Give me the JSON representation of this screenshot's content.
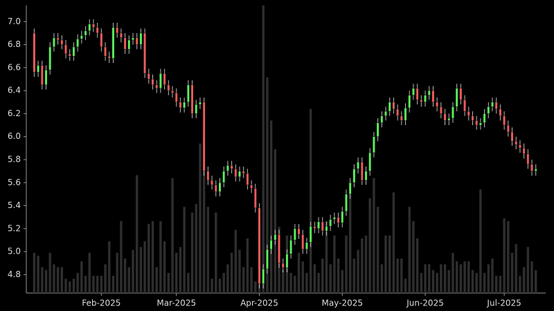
{
  "chart_data": {
    "type": "candlestick",
    "categories": [
      null,
      null,
      null,
      null,
      null,
      null,
      null,
      null,
      null,
      null,
      null,
      null,
      null,
      null,
      null,
      null,
      null,
      null,
      null,
      null,
      null,
      null,
      null,
      null,
      null,
      null,
      null,
      null,
      null,
      null,
      null,
      null,
      null,
      null,
      null,
      null,
      null,
      null,
      null,
      null,
      null,
      null,
      null,
      null,
      null,
      null,
      null,
      null,
      null,
      null,
      null,
      null,
      null,
      null,
      null,
      null,
      null,
      null,
      null,
      null,
      null,
      null,
      null,
      null,
      null,
      null,
      null,
      null,
      null,
      null,
      null,
      null,
      null,
      null,
      null,
      null,
      null,
      null,
      null,
      null,
      null,
      null,
      null,
      null,
      null,
      null,
      null,
      null,
      null,
      null,
      null,
      null,
      null,
      null,
      null,
      null,
      null,
      null,
      null,
      null,
      null,
      null,
      null,
      null,
      null,
      null,
      null,
      null,
      null,
      null,
      null,
      null,
      null,
      null,
      null,
      null,
      null,
      null,
      null,
      null,
      null,
      null,
      null,
      null,
      null,
      null,
      null,
      null
    ],
    "open": [
      6.9,
      6.56,
      6.62,
      6.45,
      6.58,
      6.78,
      6.86,
      6.84,
      6.8,
      6.72,
      6.7,
      6.78,
      6.85,
      6.88,
      6.92,
      6.98,
      6.95,
      6.9,
      6.78,
      6.7,
      6.68,
      6.95,
      6.9,
      6.86,
      6.76,
      6.84,
      6.86,
      6.8,
      6.9,
      6.55,
      6.5,
      6.45,
      6.42,
      6.55,
      6.45,
      6.4,
      6.38,
      6.3,
      6.25,
      6.3,
      6.45,
      6.2,
      6.28,
      6.3,
      5.7,
      5.62,
      5.58,
      5.52,
      5.6,
      5.7,
      5.75,
      5.72,
      5.65,
      5.7,
      5.68,
      5.58,
      5.55,
      5.38,
      4.72,
      4.85,
      5.02,
      5.1,
      5.15,
      4.9,
      4.86,
      4.98,
      5.1,
      5.2,
      5.15,
      5.02,
      5.08,
      5.22,
      5.2,
      5.26,
      5.18,
      5.22,
      5.28,
      5.3,
      5.25,
      5.35,
      5.5,
      5.6,
      5.72,
      5.78,
      5.62,
      5.7,
      5.86,
      6.0,
      6.12,
      6.18,
      6.22,
      6.3,
      6.24,
      6.18,
      6.14,
      6.25,
      6.36,
      6.42,
      6.32,
      6.3,
      6.36,
      6.4,
      6.3,
      6.26,
      6.2,
      6.14,
      6.16,
      6.26,
      6.42,
      6.32,
      6.22,
      6.18,
      6.14,
      6.1,
      6.12,
      6.2,
      6.26,
      6.3,
      6.24,
      6.18,
      6.1,
      6.04,
      5.96,
      5.93,
      5.9,
      5.85,
      5.76,
      5.7
    ],
    "high": [
      6.94,
      6.66,
      6.66,
      6.62,
      6.82,
      6.9,
      6.9,
      6.88,
      6.84,
      6.76,
      6.82,
      6.89,
      6.92,
      6.96,
      7.02,
      7.02,
      6.99,
      6.94,
      6.82,
      6.74,
      6.99,
      6.99,
      6.94,
      6.9,
      6.88,
      6.9,
      6.9,
      6.94,
      6.94,
      6.59,
      6.54,
      6.49,
      6.59,
      6.59,
      6.49,
      6.44,
      6.42,
      6.34,
      6.34,
      6.49,
      6.49,
      6.32,
      6.34,
      6.34,
      5.74,
      5.66,
      5.62,
      5.64,
      5.74,
      5.79,
      5.79,
      5.76,
      5.74,
      5.74,
      5.72,
      5.62,
      5.59,
      5.42,
      4.89,
      5.06,
      5.14,
      5.19,
      5.19,
      4.94,
      5.02,
      5.14,
      5.24,
      5.24,
      5.19,
      5.12,
      5.26,
      5.26,
      5.3,
      5.3,
      5.26,
      5.32,
      5.34,
      5.34,
      5.39,
      5.54,
      5.64,
      5.76,
      5.82,
      5.82,
      5.74,
      5.9,
      6.04,
      6.16,
      6.22,
      6.26,
      6.34,
      6.34,
      6.28,
      6.22,
      6.29,
      6.4,
      6.46,
      6.46,
      6.36,
      6.4,
      6.44,
      6.44,
      6.34,
      6.3,
      6.24,
      6.2,
      6.3,
      6.46,
      6.46,
      6.36,
      6.26,
      6.22,
      6.18,
      6.16,
      6.24,
      6.3,
      6.34,
      6.34,
      6.28,
      6.22,
      6.14,
      6.08,
      6.0,
      5.97,
      5.94,
      5.89,
      5.8,
      5.76
    ],
    "low": [
      6.52,
      6.52,
      6.41,
      6.41,
      6.54,
      6.74,
      6.8,
      6.76,
      6.68,
      6.66,
      6.66,
      6.74,
      6.81,
      6.84,
      6.88,
      6.91,
      6.86,
      6.74,
      6.66,
      6.64,
      6.64,
      6.86,
      6.82,
      6.72,
      6.72,
      6.8,
      6.76,
      6.76,
      6.51,
      6.46,
      6.41,
      6.38,
      6.38,
      6.41,
      6.36,
      6.34,
      6.26,
      6.21,
      6.21,
      6.26,
      6.16,
      6.16,
      6.24,
      5.66,
      5.58,
      5.54,
      5.48,
      5.48,
      5.56,
      5.66,
      5.68,
      5.61,
      5.61,
      5.64,
      5.54,
      5.51,
      5.34,
      4.68,
      4.68,
      4.81,
      4.98,
      5.06,
      4.86,
      4.82,
      4.82,
      4.94,
      5.06,
      5.11,
      4.98,
      4.98,
      5.04,
      5.16,
      5.16,
      5.14,
      5.14,
      5.18,
      5.24,
      5.21,
      5.21,
      5.31,
      5.46,
      5.56,
      5.68,
      5.58,
      5.58,
      5.66,
      5.82,
      5.96,
      6.08,
      6.14,
      6.18,
      6.2,
      6.14,
      6.1,
      6.1,
      6.21,
      6.32,
      6.28,
      6.26,
      6.26,
      6.32,
      6.26,
      6.22,
      6.16,
      6.1,
      6.1,
      6.12,
      6.22,
      6.28,
      6.18,
      6.14,
      6.1,
      6.06,
      6.06,
      6.08,
      6.16,
      6.22,
      6.2,
      6.14,
      6.06,
      6.0,
      5.92,
      5.89,
      5.86,
      5.81,
      5.72,
      5.66,
      5.66
    ],
    "close": [
      6.56,
      6.62,
      6.45,
      6.58,
      6.78,
      6.86,
      6.84,
      6.8,
      6.72,
      6.7,
      6.78,
      6.85,
      6.88,
      6.92,
      6.98,
      6.95,
      6.9,
      6.78,
      6.7,
      6.68,
      6.95,
      6.9,
      6.86,
      6.76,
      6.84,
      6.86,
      6.8,
      6.9,
      6.55,
      6.5,
      6.45,
      6.42,
      6.55,
      6.45,
      6.4,
      6.38,
      6.3,
      6.25,
      6.3,
      6.45,
      6.2,
      6.28,
      6.3,
      5.7,
      5.62,
      5.58,
      5.52,
      5.6,
      5.7,
      5.75,
      5.72,
      5.65,
      5.7,
      5.68,
      5.58,
      5.55,
      5.38,
      4.72,
      4.85,
      5.02,
      5.1,
      5.15,
      4.9,
      4.86,
      4.98,
      5.1,
      5.2,
      5.15,
      5.02,
      5.08,
      5.22,
      5.2,
      5.26,
      5.18,
      5.22,
      5.28,
      5.3,
      5.25,
      5.35,
      5.5,
      5.6,
      5.72,
      5.78,
      5.62,
      5.7,
      5.86,
      6.0,
      6.12,
      6.18,
      6.22,
      6.3,
      6.24,
      6.18,
      6.14,
      6.25,
      6.36,
      6.42,
      6.32,
      6.3,
      6.36,
      6.4,
      6.3,
      6.26,
      6.2,
      6.14,
      6.16,
      6.26,
      6.42,
      6.32,
      6.22,
      6.18,
      6.14,
      6.1,
      6.12,
      6.2,
      6.26,
      6.3,
      6.24,
      6.18,
      6.1,
      6.04,
      5.96,
      5.93,
      5.9,
      5.85,
      5.76,
      5.7,
      5.72
    ],
    "volume": [
      14,
      13,
      9,
      8,
      14,
      10,
      9,
      9,
      5,
      4,
      5,
      7,
      11,
      6,
      14,
      6,
      6,
      6,
      10,
      18,
      6,
      14,
      25,
      12,
      9,
      15,
      41,
      16,
      18,
      24,
      25,
      9,
      25,
      18,
      7,
      40,
      14,
      16,
      30,
      7,
      28,
      31,
      52,
      57,
      30,
      5,
      28,
      5,
      7,
      10,
      14,
      22,
      15,
      9,
      19,
      9,
      4,
      25,
      100,
      75,
      60,
      50,
      23,
      8,
      20,
      7,
      6,
      14,
      11,
      7,
      64,
      10,
      7,
      12,
      25,
      10,
      20,
      12,
      8,
      20,
      35,
      12,
      15,
      19,
      20,
      33,
      40,
      30,
      10,
      20,
      20,
      35,
      12,
      12,
      5,
      30,
      25,
      19,
      7,
      10,
      10,
      8,
      7,
      10,
      10,
      8,
      14,
      11,
      10,
      11,
      11,
      8,
      7,
      36,
      7,
      10,
      12,
      6,
      6,
      26,
      25,
      14,
      17,
      6,
      9,
      16,
      11,
      8
    ],
    "up_color": "#5cf05c",
    "down_color": "#f05c5c",
    "volume_color": "#2e2e2e",
    "xlim": [
      -2,
      129.5
    ],
    "xticks": [
      {
        "value": 17,
        "label": "Feb-2025"
      },
      {
        "value": 36,
        "label": "Mar-2025"
      },
      {
        "value": 57,
        "label": "Apr-2025"
      },
      {
        "value": 78,
        "label": "May-2025"
      },
      {
        "value": 99,
        "label": "Jun-2025"
      },
      {
        "value": 119,
        "label": "Jul-2025"
      }
    ],
    "ylim": [
      4.64,
      7.14
    ],
    "yticks": [
      4.8,
      {
        "value": 5,
        "label": "5.0"
      },
      5.2,
      5.4,
      5.6,
      5.8,
      {
        "value": 6,
        "label": "6.0"
      },
      6.2,
      6.4,
      6.6,
      6.8,
      {
        "value": 7,
        "label": "7.0"
      }
    ],
    "y2lim": [
      0,
      100
    ]
  }
}
